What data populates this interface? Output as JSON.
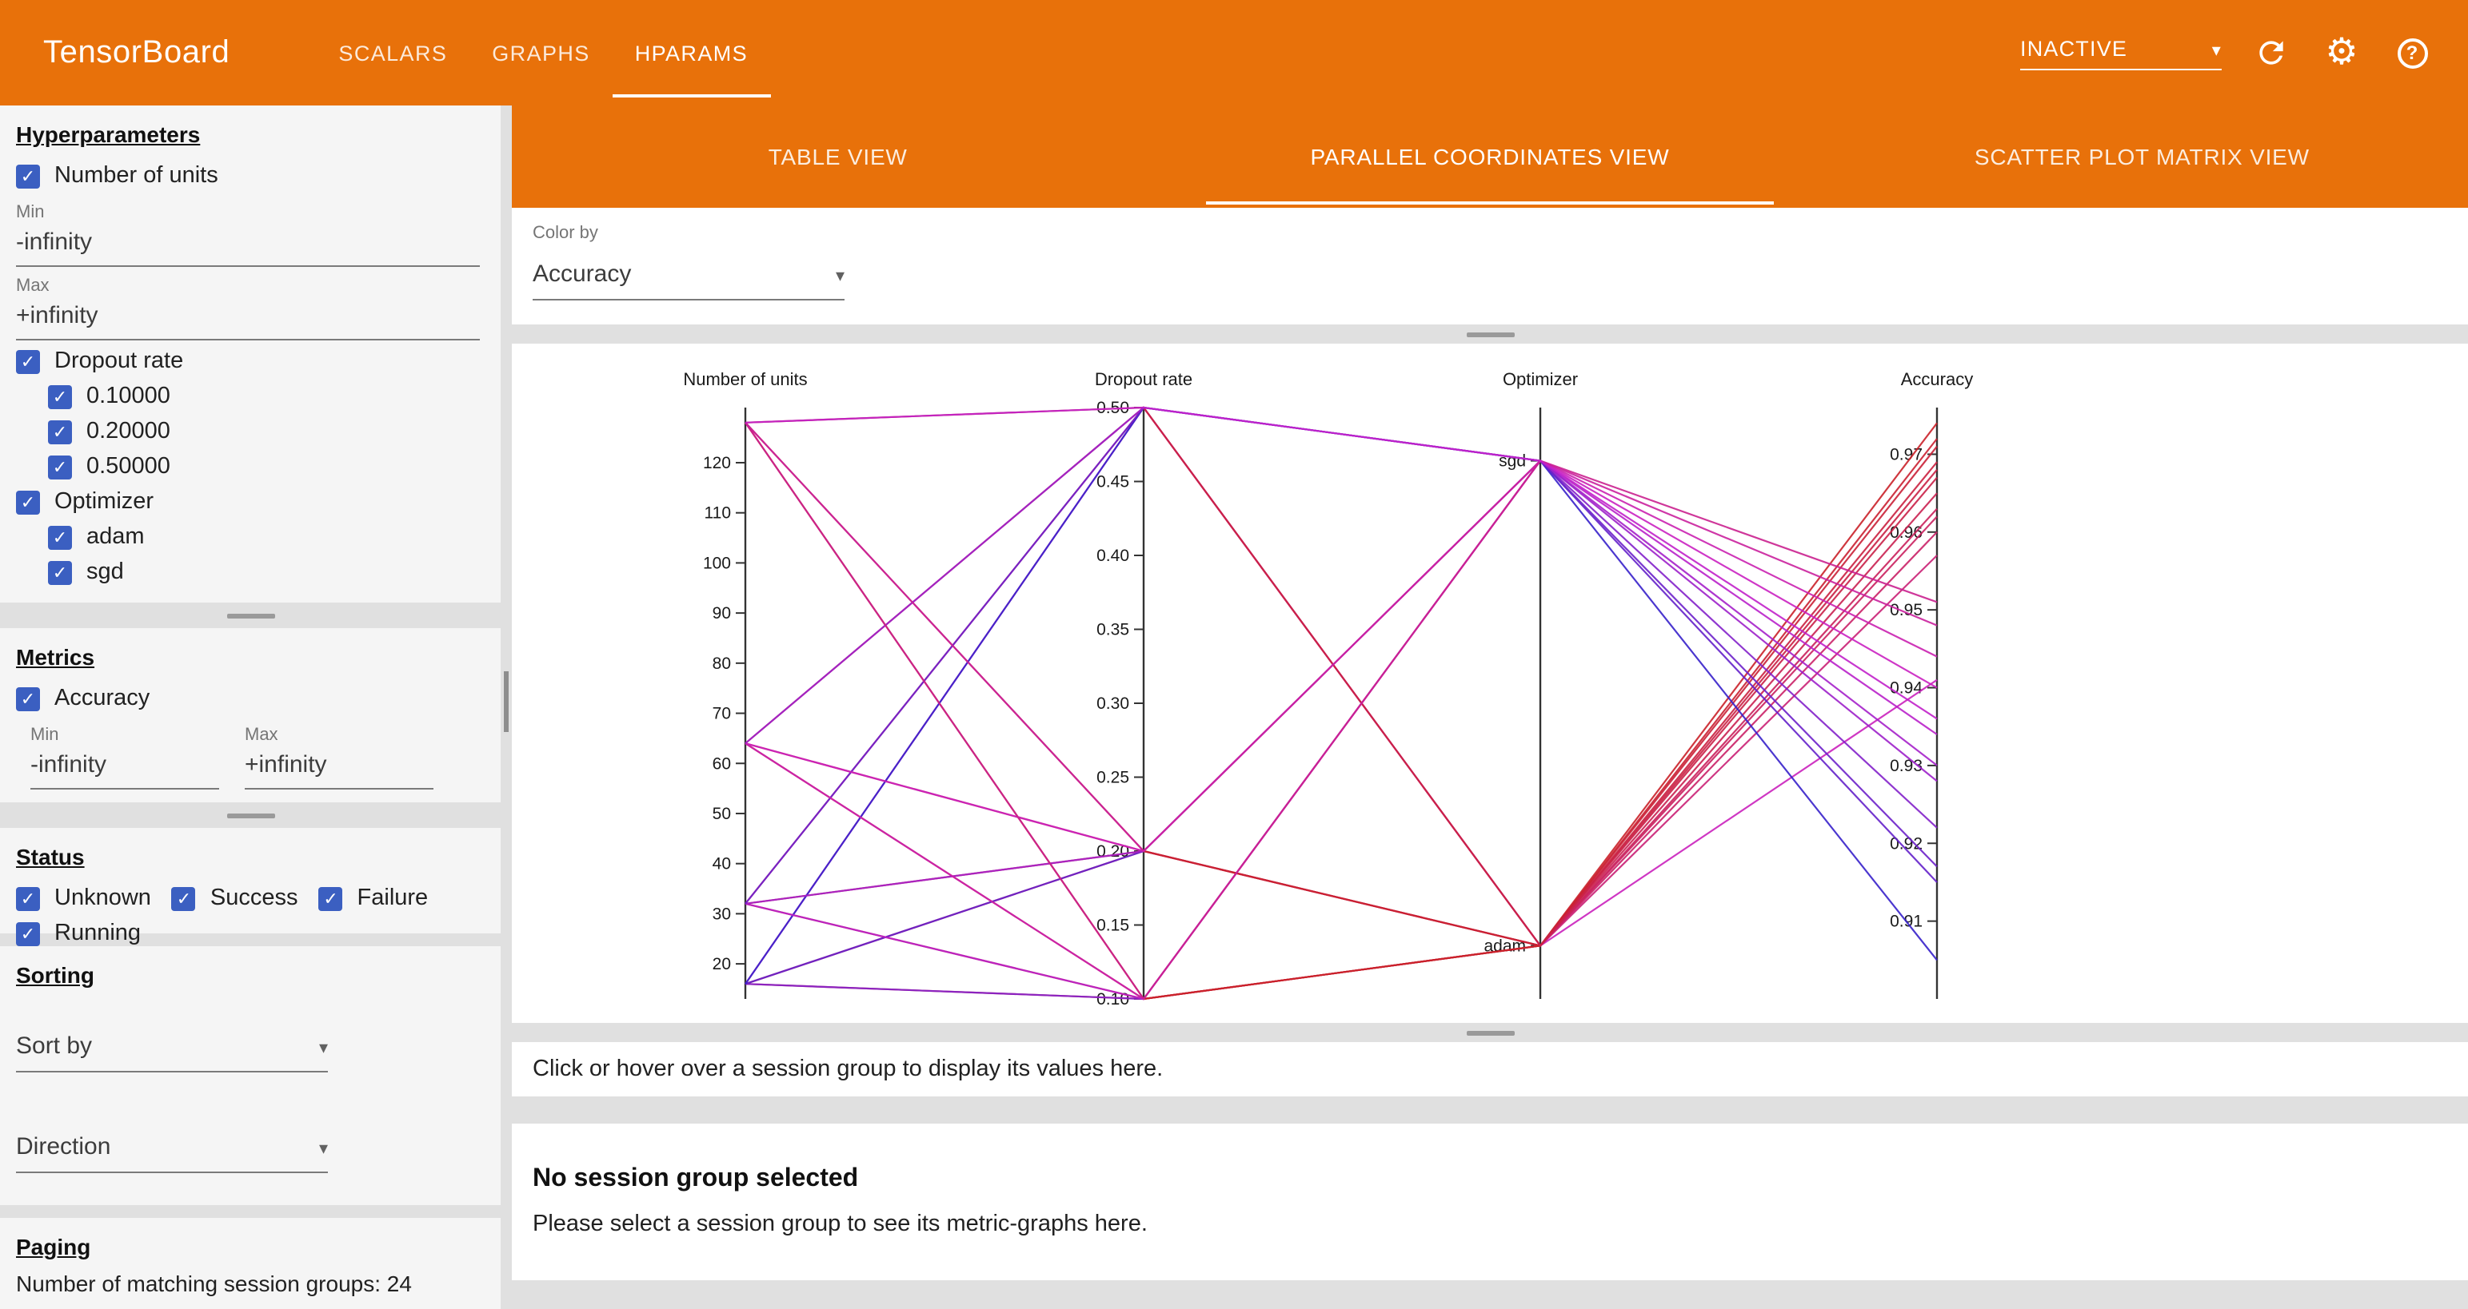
{
  "header": {
    "title": "TensorBoard",
    "nav_tabs": [
      {
        "label": "SCALARS"
      },
      {
        "label": "GRAPHS"
      },
      {
        "label": "HPARAMS"
      }
    ],
    "active_nav_tab": "HPARAMS",
    "status_dropdown": "INACTIVE"
  },
  "sidebar": {
    "hyperparameters": {
      "heading": "Hyperparameters",
      "number_of_units": {
        "label": "Number of units",
        "min_label": "Min",
        "min_value": "-infinity",
        "max_label": "Max",
        "max_value": "+infinity"
      },
      "dropout": {
        "label": "Dropout rate",
        "options": [
          "0.10000",
          "0.20000",
          "0.50000"
        ]
      },
      "optimizer": {
        "label": "Optimizer",
        "options": [
          "adam",
          "sgd"
        ]
      }
    },
    "metrics": {
      "heading": "Metrics",
      "accuracy_label": "Accuracy",
      "min_label": "Min",
      "min_value": "-infinity",
      "max_label": "Max",
      "max_value": "+infinity"
    },
    "status": {
      "heading": "Status",
      "options": [
        "Unknown",
        "Success",
        "Failure",
        "Running"
      ]
    },
    "sorting": {
      "heading": "Sorting",
      "sort_by_placeholder": "Sort by",
      "direction_placeholder": "Direction"
    },
    "paging": {
      "heading": "Paging",
      "summary": "Number of matching session groups: 24"
    }
  },
  "main": {
    "view_tabs": [
      "TABLE VIEW",
      "PARALLEL COORDINATES VIEW",
      "SCATTER PLOT MATRIX VIEW"
    ],
    "active_view_tab": "PARALLEL COORDINATES VIEW",
    "color_by": {
      "label": "Color by",
      "value": "Accuracy"
    },
    "hint": "Click or hover over a session group to display its values here.",
    "empty_state": {
      "title": "No session group selected",
      "subtitle": "Please select a session group to see its metric-graphs here."
    }
  },
  "chart_data": {
    "type": "parallel_coordinates",
    "color_by": "Accuracy",
    "color_range": [
      0.9,
      0.976
    ],
    "axes": [
      {
        "name": "Number of units",
        "type": "linear",
        "domain": [
          13,
          131
        ],
        "ticks": [
          20,
          30,
          40,
          50,
          60,
          70,
          80,
          90,
          100,
          110,
          120
        ]
      },
      {
        "name": "Dropout rate",
        "type": "linear",
        "domain": [
          0.1,
          0.5
        ],
        "ticks": [
          0.1,
          0.15,
          0.2,
          0.25,
          0.3,
          0.35,
          0.4,
          0.45,
          0.5
        ],
        "tick_decimals": 2
      },
      {
        "name": "Optimizer",
        "type": "categorical",
        "categories": [
          "sgd",
          "adam"
        ],
        "positions": [
          0.09,
          0.91
        ]
      },
      {
        "name": "Accuracy",
        "type": "linear",
        "domain": [
          0.9,
          0.976
        ],
        "ticks": [
          0.91,
          0.92,
          0.93,
          0.94,
          0.95,
          0.96,
          0.97
        ],
        "tick_decimals": 2
      }
    ],
    "sessions": [
      {
        "units": 16,
        "dropout": 0.1,
        "optimizer": "adam",
        "accuracy": 0.963
      },
      {
        "units": 16,
        "dropout": 0.2,
        "optimizer": "adam",
        "accuracy": 0.96
      },
      {
        "units": 16,
        "dropout": 0.5,
        "optimizer": "adam",
        "accuracy": 0.941
      },
      {
        "units": 32,
        "dropout": 0.1,
        "optimizer": "adam",
        "accuracy": 0.968
      },
      {
        "units": 32,
        "dropout": 0.2,
        "optimizer": "adam",
        "accuracy": 0.965
      },
      {
        "units": 32,
        "dropout": 0.5,
        "optimizer": "adam",
        "accuracy": 0.957
      },
      {
        "units": 64,
        "dropout": 0.1,
        "optimizer": "adam",
        "accuracy": 0.971
      },
      {
        "units": 64,
        "dropout": 0.2,
        "optimizer": "adam",
        "accuracy": 0.969
      },
      {
        "units": 64,
        "dropout": 0.5,
        "optimizer": "adam",
        "accuracy": 0.962
      },
      {
        "units": 128,
        "dropout": 0.1,
        "optimizer": "adam",
        "accuracy": 0.974
      },
      {
        "units": 128,
        "dropout": 0.2,
        "optimizer": "adam",
        "accuracy": 0.972
      },
      {
        "units": 128,
        "dropout": 0.5,
        "optimizer": "adam",
        "accuracy": 0.967
      },
      {
        "units": 16,
        "dropout": 0.1,
        "optimizer": "sgd",
        "accuracy": 0.922
      },
      {
        "units": 16,
        "dropout": 0.2,
        "optimizer": "sgd",
        "accuracy": 0.915
      },
      {
        "units": 16,
        "dropout": 0.5,
        "optimizer": "sgd",
        "accuracy": 0.905
      },
      {
        "units": 32,
        "dropout": 0.1,
        "optimizer": "sgd",
        "accuracy": 0.934
      },
      {
        "units": 32,
        "dropout": 0.2,
        "optimizer": "sgd",
        "accuracy": 0.93
      },
      {
        "units": 32,
        "dropout": 0.5,
        "optimizer": "sgd",
        "accuracy": 0.917
      },
      {
        "units": 64,
        "dropout": 0.1,
        "optimizer": "sgd",
        "accuracy": 0.944
      },
      {
        "units": 64,
        "dropout": 0.2,
        "optimizer": "sgd",
        "accuracy": 0.94
      },
      {
        "units": 64,
        "dropout": 0.5,
        "optimizer": "sgd",
        "accuracy": 0.928
      },
      {
        "units": 128,
        "dropout": 0.1,
        "optimizer": "sgd",
        "accuracy": 0.951
      },
      {
        "units": 128,
        "dropout": 0.2,
        "optimizer": "sgd",
        "accuracy": 0.948
      },
      {
        "units": 128,
        "dropout": 0.5,
        "optimizer": "sgd",
        "accuracy": 0.936
      }
    ]
  }
}
